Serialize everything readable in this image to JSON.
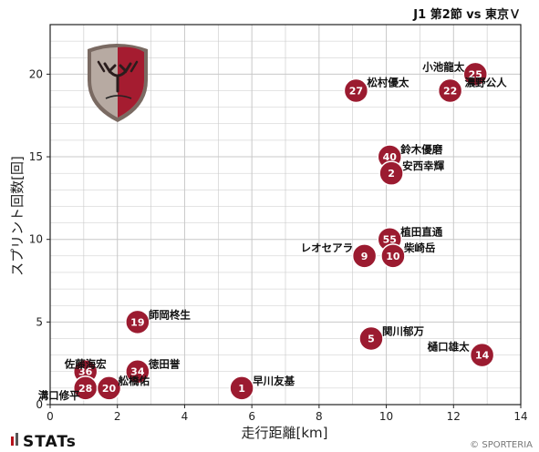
{
  "colors": {
    "marker": "#9b1b30",
    "marker_edge": "#ffffff",
    "grid": "#c8c8c8",
    "frame": "#222222"
  },
  "chart_data": {
    "type": "scatter",
    "title": "J1 第2節 vs 東京Ｖ",
    "xlabel": "走行距離[km]",
    "ylabel": "スプリント回数[回]",
    "xlim": [
      0,
      14
    ],
    "ylim": [
      0,
      23
    ],
    "xticks": [
      "0",
      "2",
      "4",
      "6",
      "8",
      "10",
      "12",
      "14"
    ],
    "yticks": [
      "0",
      "5",
      "10",
      "15",
      "20"
    ],
    "grid": true,
    "points": [
      {
        "number": "25",
        "name": "小池龍太",
        "x": 12.65,
        "y": 20
      },
      {
        "number": "22",
        "name": "濃野公人",
        "x": 11.9,
        "y": 19
      },
      {
        "number": "27",
        "name": "松村優太",
        "x": 9.1,
        "y": 19
      },
      {
        "number": "40",
        "name": "鈴木優磨",
        "x": 10.1,
        "y": 15
      },
      {
        "number": "2",
        "name": "安西幸輝",
        "x": 10.15,
        "y": 14
      },
      {
        "number": "55",
        "name": "植田直通",
        "x": 10.1,
        "y": 10
      },
      {
        "number": "9",
        "name": "レオセアラ",
        "x": 9.35,
        "y": 9
      },
      {
        "number": "10",
        "name": "柴崎岳",
        "x": 10.2,
        "y": 9
      },
      {
        "number": "19",
        "name": "師岡柊生",
        "x": 2.6,
        "y": 5
      },
      {
        "number": "5",
        "name": "関川郁万",
        "x": 9.55,
        "y": 4
      },
      {
        "number": "14",
        "name": "樋口雄太",
        "x": 12.85,
        "y": 3
      },
      {
        "number": "1",
        "name": "早川友基",
        "x": 5.7,
        "y": 1
      },
      {
        "number": "36",
        "name": "佐藤海宏",
        "x": 1.05,
        "y": 2
      },
      {
        "number": "34",
        "name": "徳田誉",
        "x": 2.6,
        "y": 2
      },
      {
        "number": "28",
        "name": "溝口修平",
        "x": 1.05,
        "y": 1
      },
      {
        "number": "20",
        "name": "舩橋佑",
        "x": 1.75,
        "y": 1
      }
    ]
  },
  "footer": {
    "brand": "STATs",
    "credit": "© SPORTERIA"
  }
}
